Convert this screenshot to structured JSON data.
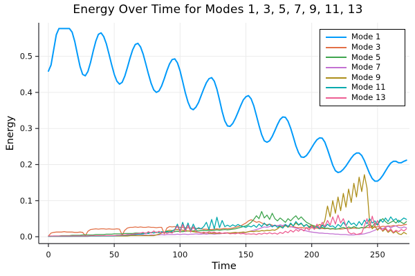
{
  "chart_data": {
    "type": "line",
    "title": "Energy Over Time for Modes 1, 3, 5, 7, 9, 11, 13",
    "xlabel": "Time",
    "ylabel": "Energy",
    "xlim": [
      -7.35,
      274.25
    ],
    "ylim": [
      -0.019,
      0.593
    ],
    "xticks": [
      0,
      50,
      100,
      150,
      200,
      250
    ],
    "yticks": [
      0.0,
      0.1,
      0.2,
      0.3,
      0.4,
      0.5
    ],
    "grid": true,
    "legend_position": "top-right",
    "grid_color": "#ebebeb",
    "axis_color": "#26262b",
    "series": [
      {
        "name": "Mode 1",
        "color": "#009AFA",
        "x_start": 0,
        "x_step": 2,
        "values": [
          0.459,
          0.476,
          0.518,
          0.56,
          0.577,
          0.577,
          0.577,
          0.577,
          0.577,
          0.567,
          0.541,
          0.506,
          0.472,
          0.45,
          0.446,
          0.458,
          0.483,
          0.514,
          0.542,
          0.561,
          0.565,
          0.555,
          0.535,
          0.507,
          0.477,
          0.45,
          0.431,
          0.423,
          0.428,
          0.445,
          0.469,
          0.495,
          0.518,
          0.533,
          0.536,
          0.526,
          0.506,
          0.479,
          0.451,
          0.425,
          0.407,
          0.4,
          0.404,
          0.418,
          0.438,
          0.46,
          0.479,
          0.491,
          0.493,
          0.482,
          0.46,
          0.43,
          0.399,
          0.373,
          0.356,
          0.352,
          0.359,
          0.372,
          0.391,
          0.41,
          0.427,
          0.438,
          0.441,
          0.431,
          0.409,
          0.379,
          0.347,
          0.321,
          0.307,
          0.306,
          0.314,
          0.328,
          0.345,
          0.363,
          0.379,
          0.388,
          0.391,
          0.382,
          0.363,
          0.336,
          0.308,
          0.283,
          0.266,
          0.262,
          0.266,
          0.278,
          0.294,
          0.311,
          0.325,
          0.332,
          0.331,
          0.32,
          0.301,
          0.277,
          0.252,
          0.233,
          0.221,
          0.22,
          0.225,
          0.235,
          0.247,
          0.259,
          0.269,
          0.274,
          0.273,
          0.262,
          0.242,
          0.22,
          0.198,
          0.183,
          0.178,
          0.18,
          0.187,
          0.196,
          0.207,
          0.218,
          0.227,
          0.232,
          0.232,
          0.225,
          0.211,
          0.193,
          0.175,
          0.161,
          0.154,
          0.154,
          0.16,
          0.17,
          0.182,
          0.194,
          0.204,
          0.209,
          0.209,
          0.205,
          0.205,
          0.209,
          0.212
        ]
      },
      {
        "name": "Mode 3",
        "color": "#E26F46",
        "x_start": 0,
        "x_step": 2,
        "values": [
          0.002,
          0.01,
          0.012,
          0.013,
          0.013,
          0.013,
          0.014,
          0.013,
          0.013,
          0.013,
          0.012,
          0.012,
          0.013,
          0.012,
          0.003,
          0.015,
          0.02,
          0.021,
          0.022,
          0.021,
          0.022,
          0.022,
          0.021,
          0.022,
          0.021,
          0.021,
          0.022,
          0.021,
          0.005,
          0.018,
          0.024,
          0.026,
          0.026,
          0.027,
          0.026,
          0.027,
          0.026,
          0.026,
          0.027,
          0.026,
          0.026,
          0.025,
          0.026,
          0.026,
          0.008,
          0.024,
          0.028,
          0.027,
          0.028,
          0.027,
          0.026,
          0.026,
          0.025,
          0.025,
          0.024,
          0.024,
          0.023,
          0.022,
          0.022,
          0.021,
          0.021,
          0.02,
          0.02,
          0.021,
          0.022,
          0.021,
          0.022,
          0.023,
          0.022,
          0.023,
          0.024,
          0.026,
          0.028,
          0.03,
          0.034,
          0.038,
          0.044,
          0.047,
          0.044,
          0.04,
          0.042,
          0.038,
          0.035,
          0.033,
          0.035,
          0.032,
          0.03,
          0.031,
          0.029,
          0.028,
          0.03,
          0.028,
          0.027,
          0.028,
          0.026,
          0.025,
          0.026,
          0.024,
          0.025,
          0.024,
          0.025,
          0.023,
          0.024,
          0.022,
          0.023,
          0.022,
          0.023,
          0.021,
          0.022,
          0.021,
          0.022,
          0.021,
          0.022,
          0.023,
          0.022,
          0.023,
          0.024,
          0.023,
          0.024,
          0.025,
          0.024,
          0.026,
          0.025,
          0.027,
          0.026,
          0.028,
          0.027,
          0.029,
          0.028,
          0.03,
          0.029,
          0.031,
          0.03,
          0.032,
          0.031,
          0.033,
          0.034
        ]
      },
      {
        "name": "Mode 5",
        "color": "#3DA44D",
        "x_start": 0,
        "x_step": 2,
        "values": [
          0.001,
          0.001,
          0.002,
          0.002,
          0.002,
          0.003,
          0.003,
          0.003,
          0.003,
          0.004,
          0.004,
          0.004,
          0.004,
          0.005,
          0.005,
          0.005,
          0.005,
          0.005,
          0.006,
          0.006,
          0.006,
          0.006,
          0.007,
          0.007,
          0.007,
          0.008,
          0.008,
          0.008,
          0.008,
          0.009,
          0.009,
          0.009,
          0.009,
          0.01,
          0.01,
          0.01,
          0.01,
          0.01,
          0.011,
          0.011,
          0.011,
          0.012,
          0.012,
          0.013,
          0.012,
          0.013,
          0.014,
          0.013,
          0.014,
          0.015,
          0.014,
          0.014,
          0.015,
          0.016,
          0.015,
          0.016,
          0.017,
          0.016,
          0.017,
          0.018,
          0.017,
          0.018,
          0.017,
          0.018,
          0.019,
          0.018,
          0.019,
          0.02,
          0.019,
          0.02,
          0.021,
          0.022,
          0.024,
          0.026,
          0.028,
          0.03,
          0.034,
          0.04,
          0.048,
          0.058,
          0.05,
          0.07,
          0.052,
          0.06,
          0.048,
          0.065,
          0.05,
          0.044,
          0.052,
          0.046,
          0.04,
          0.05,
          0.044,
          0.052,
          0.058,
          0.048,
          0.055,
          0.047,
          0.04,
          0.036,
          0.032,
          0.03,
          0.027,
          0.025,
          0.026,
          0.023,
          0.024,
          0.022,
          0.023,
          0.021,
          0.022,
          0.024,
          0.026,
          0.023,
          0.027,
          0.024,
          0.028,
          0.025,
          0.023,
          0.026,
          0.024,
          0.03,
          0.034,
          0.028,
          0.038,
          0.032,
          0.044,
          0.05,
          0.042,
          0.036,
          0.04,
          0.044,
          0.038,
          0.046,
          0.04,
          0.036,
          0.042
        ]
      },
      {
        "name": "Mode 7",
        "color": "#C271D2",
        "x_start": 0,
        "x_step": 2,
        "values": [
          0.001,
          0.001,
          0.001,
          0.001,
          0.001,
          0.001,
          0.001,
          0.001,
          0.001,
          0.001,
          0.002,
          0.002,
          0.002,
          0.002,
          0.002,
          0.002,
          0.002,
          0.002,
          0.002,
          0.002,
          0.002,
          0.003,
          0.003,
          0.003,
          0.003,
          0.003,
          0.003,
          0.003,
          0.003,
          0.003,
          0.003,
          0.003,
          0.004,
          0.004,
          0.004,
          0.004,
          0.005,
          0.005,
          0.004,
          0.005,
          0.005,
          0.005,
          0.005,
          0.006,
          0.005,
          0.006,
          0.006,
          0.006,
          0.006,
          0.007,
          0.006,
          0.007,
          0.007,
          0.006,
          0.007,
          0.007,
          0.008,
          0.007,
          0.007,
          0.008,
          0.007,
          0.008,
          0.008,
          0.007,
          0.008,
          0.008,
          0.009,
          0.009,
          0.01,
          0.01,
          0.011,
          0.01,
          0.011,
          0.012,
          0.011,
          0.012,
          0.014,
          0.016,
          0.018,
          0.02,
          0.022,
          0.025,
          0.027,
          0.026,
          0.028,
          0.03,
          0.032,
          0.03,
          0.033,
          0.031,
          0.034,
          0.03,
          0.028,
          0.026,
          0.024,
          0.022,
          0.02,
          0.018,
          0.016,
          0.014,
          0.013,
          0.012,
          0.011,
          0.01,
          0.01,
          0.009,
          0.009,
          0.008,
          0.008,
          0.007,
          0.007,
          0.006,
          0.006,
          0.006,
          0.005,
          0.005,
          0.005,
          0.006,
          0.006,
          0.007,
          0.008,
          0.01,
          0.012,
          0.015,
          0.018,
          0.022,
          0.025,
          0.022,
          0.026,
          0.029,
          0.025,
          0.028,
          0.03,
          0.026,
          0.024,
          0.027,
          0.025
        ]
      },
      {
        "name": "Mode 9",
        "color": "#AC8D18",
        "x_start": 0,
        "x_step": 2,
        "values": [
          0.001,
          0.001,
          0.001,
          0.001,
          0.001,
          0.001,
          0.001,
          0.001,
          0.001,
          0.001,
          0.001,
          0.001,
          0.001,
          0.001,
          0.001,
          0.001,
          0.002,
          0.002,
          0.002,
          0.002,
          0.002,
          0.002,
          0.002,
          0.002,
          0.002,
          0.002,
          0.002,
          0.002,
          0.002,
          0.002,
          0.002,
          0.003,
          0.003,
          0.003,
          0.003,
          0.003,
          0.003,
          0.003,
          0.003,
          0.003,
          0.003,
          0.005,
          0.007,
          0.01,
          0.013,
          0.016,
          0.018,
          0.017,
          0.019,
          0.02,
          0.019,
          0.018,
          0.017,
          0.016,
          0.015,
          0.014,
          0.013,
          0.012,
          0.011,
          0.01,
          0.011,
          0.01,
          0.009,
          0.01,
          0.009,
          0.01,
          0.009,
          0.01,
          0.011,
          0.01,
          0.011,
          0.012,
          0.011,
          0.012,
          0.013,
          0.012,
          0.014,
          0.015,
          0.014,
          0.016,
          0.015,
          0.017,
          0.016,
          0.018,
          0.017,
          0.019,
          0.018,
          0.022,
          0.028,
          0.024,
          0.032,
          0.026,
          0.035,
          0.03,
          0.038,
          0.032,
          0.036,
          0.03,
          0.034,
          0.028,
          0.032,
          0.026,
          0.03,
          0.034,
          0.03,
          0.045,
          0.085,
          0.055,
          0.1,
          0.065,
          0.11,
          0.072,
          0.12,
          0.082,
          0.132,
          0.095,
          0.148,
          0.11,
          0.165,
          0.125,
          0.172,
          0.135,
          0.04,
          0.022,
          0.03,
          0.018,
          0.026,
          0.015,
          0.022,
          0.012,
          0.018,
          0.01,
          0.015,
          0.008,
          0.006,
          0.012,
          0.008
        ]
      },
      {
        "name": "Mode 11",
        "color": "#00A9AD",
        "x_start": 0,
        "x_step": 2,
        "values": [
          0.001,
          0.001,
          0.001,
          0.001,
          0.001,
          0.001,
          0.001,
          0.001,
          0.001,
          0.001,
          0.001,
          0.001,
          0.001,
          0.001,
          0.001,
          0.001,
          0.002,
          0.002,
          0.002,
          0.002,
          0.002,
          0.002,
          0.002,
          0.002,
          0.002,
          0.002,
          0.003,
          0.003,
          0.004,
          0.004,
          0.005,
          0.005,
          0.006,
          0.006,
          0.007,
          0.007,
          0.008,
          0.01,
          0.009,
          0.012,
          0.01,
          0.013,
          0.011,
          0.014,
          0.012,
          0.015,
          0.013,
          0.016,
          0.02,
          0.035,
          0.015,
          0.04,
          0.018,
          0.038,
          0.016,
          0.035,
          0.02,
          0.025,
          0.022,
          0.028,
          0.04,
          0.02,
          0.048,
          0.022,
          0.054,
          0.025,
          0.045,
          0.028,
          0.032,
          0.028,
          0.033,
          0.029,
          0.034,
          0.03,
          0.028,
          0.026,
          0.03,
          0.027,
          0.032,
          0.026,
          0.035,
          0.028,
          0.038,
          0.03,
          0.035,
          0.027,
          0.032,
          0.026,
          0.03,
          0.024,
          0.034,
          0.027,
          0.038,
          0.03,
          0.042,
          0.033,
          0.038,
          0.028,
          0.034,
          0.026,
          0.03,
          0.024,
          0.028,
          0.022,
          0.032,
          0.026,
          0.035,
          0.028,
          0.03,
          0.024,
          0.034,
          0.028,
          0.04,
          0.03,
          0.044,
          0.034,
          0.038,
          0.03,
          0.042,
          0.032,
          0.046,
          0.036,
          0.05,
          0.038,
          0.044,
          0.034,
          0.048,
          0.04,
          0.052,
          0.042,
          0.055,
          0.045,
          0.05,
          0.04,
          0.046,
          0.052,
          0.048
        ]
      },
      {
        "name": "Mode 13",
        "color": "#ED5D92",
        "x_start": 0,
        "x_step": 2,
        "values": [
          0.002,
          0.002,
          0.002,
          0.002,
          0.002,
          0.002,
          0.002,
          0.002,
          0.002,
          0.002,
          0.002,
          0.002,
          0.002,
          0.002,
          0.002,
          0.002,
          0.003,
          0.003,
          0.003,
          0.003,
          0.003,
          0.003,
          0.003,
          0.003,
          0.003,
          0.003,
          0.004,
          0.004,
          0.005,
          0.005,
          0.006,
          0.006,
          0.007,
          0.008,
          0.009,
          0.01,
          0.012,
          0.009,
          0.014,
          0.01,
          0.016,
          0.011,
          0.015,
          0.01,
          0.013,
          0.009,
          0.012,
          0.01,
          0.018,
          0.03,
          0.012,
          0.034,
          0.014,
          0.032,
          0.013,
          0.028,
          0.015,
          0.012,
          0.01,
          0.013,
          0.01,
          0.014,
          0.011,
          0.013,
          0.01,
          0.012,
          0.009,
          0.011,
          0.01,
          0.008,
          0.009,
          0.008,
          0.01,
          0.008,
          0.009,
          0.007,
          0.008,
          0.007,
          0.008,
          0.006,
          0.009,
          0.007,
          0.01,
          0.008,
          0.011,
          0.008,
          0.01,
          0.007,
          0.012,
          0.009,
          0.015,
          0.011,
          0.018,
          0.013,
          0.02,
          0.015,
          0.022,
          0.016,
          0.025,
          0.018,
          0.03,
          0.02,
          0.035,
          0.024,
          0.04,
          0.028,
          0.045,
          0.032,
          0.055,
          0.035,
          0.06,
          0.038,
          0.05,
          0.03,
          0.012,
          0.008,
          0.01,
          0.006,
          0.008,
          0.01,
          0.03,
          0.05,
          0.025,
          0.057,
          0.03,
          0.045,
          0.022,
          0.018,
          0.025,
          0.015,
          0.022,
          0.012,
          0.018,
          0.014,
          0.02,
          0.016,
          0.022
        ]
      }
    ]
  }
}
